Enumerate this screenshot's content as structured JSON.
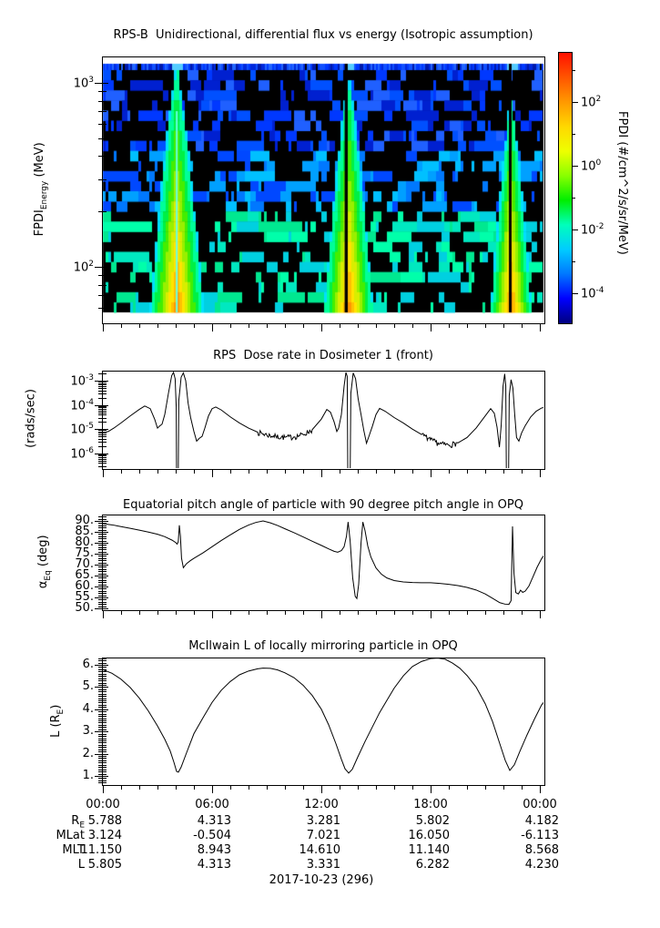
{
  "page_background": "#ffffff",
  "axis_color": "#000000",
  "curve_color": "#000000",
  "xaxis": {
    "major_labels": [
      "00:00",
      "06:00",
      "12:00",
      "18:00",
      "00:00"
    ],
    "major_hours": [
      0,
      6,
      12,
      18,
      24
    ],
    "minor_step_hours": 1,
    "range_hours": [
      0,
      24.25
    ]
  },
  "chart_data": [
    {
      "type": "heatmap",
      "title": "RPS-B  Unidirectional, differential flux vs energy (Isotropic assumption)",
      "ylabel_parts": {
        "pre": "FPDI",
        "sub": "Energy",
        "post": " (MeV)"
      },
      "y_axis": {
        "scale": "log",
        "unit": "MeV",
        "range": [
          57,
          1270
        ],
        "major_ticks": {
          "values": [
            1000,
            100
          ],
          "exponents": [
            "3",
            "2"
          ]
        },
        "minor_ticks": [
          60,
          70,
          80,
          90,
          200,
          300,
          400,
          500,
          600,
          700,
          800,
          900
        ]
      },
      "colorbar": {
        "label": "FPDI (#/cm^2/s/sr/MeV)",
        "scale": "log",
        "tick_exponents": [
          "2",
          "0",
          "-2",
          "-4"
        ],
        "tick_decades": [
          2,
          0,
          -2,
          -4
        ],
        "minor_decades": [
          3,
          1,
          -1,
          -3
        ],
        "gradient_bottom_to_top": [
          "#00007f",
          "#0000ff",
          "#0077ff",
          "#00ccff",
          "#00ffbb",
          "#00ee00",
          "#88ff00",
          "#eeff00",
          "#ffd800",
          "#ff9900",
          "#ff5500",
          "#ff1100"
        ]
      },
      "top_band": {
        "description": "solid blue band at highest energy bin ~1300 MeV",
        "color": "#0030dd"
      },
      "background": "sparse random speckle, blue dashes at high energy, cyan-green dashes at low energy, on black",
      "flames": [
        {
          "center_hour": 4.06,
          "tip_frac": 0.0,
          "half_width_hours": 1.55,
          "gap_hours": null,
          "center_line": true
        },
        {
          "center_hour": 13.5,
          "tip_frac": 0.034,
          "half_width_hours": 1.45,
          "gap_hours": [
            13.28,
            13.45
          ],
          "center_line": false
        },
        {
          "center_hour": 22.42,
          "tip_frac": 0.117,
          "half_width_hours": 1.2,
          "gap_hours": [
            22.3,
            22.45
          ],
          "center_line": false
        }
      ]
    },
    {
      "type": "line",
      "title": "RPS  Dose rate in Dosimeter 1 (front)",
      "ylabel_parts": {
        "pre": "(rads/sec)",
        "sub": "",
        "post": ""
      },
      "y_axis": {
        "scale": "log",
        "range": [
          2.3e-07,
          0.0026
        ],
        "major_ticks": {
          "values": [
            0.001,
            0.0001,
            1e-05,
            1e-06
          ],
          "exponents": [
            "-3",
            "-4",
            "-5",
            "-6"
          ]
        }
      },
      "noisy_ranges": [
        [
          8.3,
          11.6
        ],
        [
          17.2,
          19.9
        ]
      ],
      "series": [
        [
          0,
          7e-06
        ],
        [
          0.3,
          8e-06
        ],
        [
          0.6,
          1.1e-05
        ],
        [
          1,
          1.8e-05
        ],
        [
          1.5,
          3.5e-05
        ],
        [
          2,
          6.5e-05
        ],
        [
          2.3,
          9e-05
        ],
        [
          2.6,
          7e-05
        ],
        [
          2.85,
          2.5e-05
        ],
        [
          3,
          1.1e-05
        ],
        [
          3.1,
          1.3e-05
        ],
        [
          3.25,
          1.6e-05
        ],
        [
          3.4,
          4e-05
        ],
        [
          3.6,
          0.0003
        ],
        [
          3.78,
          0.0016
        ],
        [
          3.88,
          0.0022
        ],
        [
          3.97,
          0.0012
        ],
        [
          4.03,
          8e-05
        ],
        [
          4.06,
          1e-09
        ],
        [
          4.12,
          1e-09
        ],
        [
          4.17,
          0.00015
        ],
        [
          4.3,
          0.0014
        ],
        [
          4.42,
          0.0021
        ],
        [
          4.55,
          0.001
        ],
        [
          4.68,
          0.00012
        ],
        [
          4.82,
          3e-05
        ],
        [
          5,
          8e-06
        ],
        [
          5.15,
          3.2e-06
        ],
        [
          5.3,
          4.2e-06
        ],
        [
          5.45,
          5e-06
        ],
        [
          5.6,
          1.1e-05
        ],
        [
          5.8,
          3.5e-05
        ],
        [
          6,
          7e-05
        ],
        [
          6.2,
          8.2e-05
        ],
        [
          6.5,
          6.2e-05
        ],
        [
          7,
          3.2e-05
        ],
        [
          7.5,
          1.8e-05
        ],
        [
          8,
          1.1e-05
        ],
        [
          8.5,
          7.5e-06
        ],
        [
          9,
          5.8e-06
        ],
        [
          9.5,
          5e-06
        ],
        [
          10,
          4.6e-06
        ],
        [
          10.5,
          4.8e-06
        ],
        [
          11,
          6e-06
        ],
        [
          11.5,
          9.5e-06
        ],
        [
          12,
          2.6e-05
        ],
        [
          12.3,
          6.5e-05
        ],
        [
          12.5,
          5e-05
        ],
        [
          12.7,
          2e-05
        ],
        [
          12.85,
          8e-06
        ],
        [
          12.95,
          1.1e-05
        ],
        [
          13.1,
          4e-05
        ],
        [
          13.25,
          0.0006
        ],
        [
          13.35,
          0.0022
        ],
        [
          13.42,
          0.0015
        ],
        [
          13.47,
          1e-09
        ],
        [
          13.56,
          1e-09
        ],
        [
          13.62,
          0.0003
        ],
        [
          13.75,
          0.0021
        ],
        [
          13.88,
          0.0012
        ],
        [
          14.02,
          0.00018
        ],
        [
          14.18,
          4e-05
        ],
        [
          14.33,
          9e-06
        ],
        [
          14.48,
          2.6e-06
        ],
        [
          14.63,
          5.5e-06
        ],
        [
          14.8,
          1.3e-05
        ],
        [
          15,
          4e-05
        ],
        [
          15.2,
          7.2e-05
        ],
        [
          15.5,
          5.5e-05
        ],
        [
          16,
          3e-05
        ],
        [
          16.5,
          1.8e-05
        ],
        [
          17,
          1e-05
        ],
        [
          17.5,
          6e-06
        ],
        [
          18,
          3.6e-06
        ],
        [
          18.5,
          2.5e-06
        ],
        [
          19,
          2.2e-06
        ],
        [
          19.5,
          2.7e-06
        ],
        [
          20,
          4.5e-06
        ],
        [
          20.5,
          1.1e-05
        ],
        [
          21,
          3.5e-05
        ],
        [
          21.3,
          7e-05
        ],
        [
          21.5,
          4.5e-05
        ],
        [
          21.65,
          1.2e-05
        ],
        [
          21.78,
          1.8e-06
        ],
        [
          21.88,
          1.5e-05
        ],
        [
          21.98,
          0.0006
        ],
        [
          22.07,
          0.0019
        ],
        [
          22.13,
          0.0006
        ],
        [
          22.18,
          1e-09
        ],
        [
          22.26,
          1e-09
        ],
        [
          22.32,
          0.00025
        ],
        [
          22.42,
          0.0011
        ],
        [
          22.52,
          0.0005
        ],
        [
          22.62,
          4e-05
        ],
        [
          22.72,
          4.5e-06
        ],
        [
          22.85,
          3.2e-06
        ],
        [
          23,
          7e-06
        ],
        [
          23.2,
          1.4e-05
        ],
        [
          23.5,
          3.2e-05
        ],
        [
          23.8,
          5.5e-05
        ],
        [
          24.1,
          7.5e-05
        ],
        [
          24.25,
          7.8e-05
        ]
      ]
    },
    {
      "type": "line",
      "title": "Equatorial pitch angle of particle with 90 degree pitch angle in OPQ",
      "ylabel_parts": {
        "pre": "α",
        "sub": "Eq",
        "post": " (deg)"
      },
      "y_axis": {
        "scale": "linear",
        "range": [
          49.2,
          92.9
        ],
        "major_ticks": {
          "values": [
            90,
            85,
            80,
            75,
            70,
            65,
            60,
            55,
            50
          ],
          "labels": [
            "90.",
            "85.",
            "80.",
            "75.",
            "70.",
            "65.",
            "60.",
            "55.",
            "50."
          ]
        },
        "minor_step": 1
      },
      "series": [
        [
          0,
          88.7
        ],
        [
          0.5,
          88.2
        ],
        [
          1,
          87.4
        ],
        [
          1.5,
          86.6
        ],
        [
          2,
          85.8
        ],
        [
          2.5,
          84.9
        ],
        [
          3,
          83.9
        ],
        [
          3.4,
          82.8
        ],
        [
          3.8,
          81.2
        ],
        [
          4,
          80.1
        ],
        [
          4.08,
          79.4
        ],
        [
          4.14,
          80.5
        ],
        [
          4.2,
          88
        ],
        [
          4.26,
          83
        ],
        [
          4.32,
          73
        ],
        [
          4.42,
          68.6
        ],
        [
          4.6,
          70.5
        ],
        [
          4.8,
          71.8
        ],
        [
          5,
          72.9
        ],
        [
          5.5,
          75.4
        ],
        [
          6,
          78.2
        ],
        [
          6.5,
          81
        ],
        [
          7,
          83.6
        ],
        [
          7.5,
          86.1
        ],
        [
          8,
          88.1
        ],
        [
          8.4,
          89.3
        ],
        [
          8.8,
          90
        ],
        [
          9.2,
          89.1
        ],
        [
          9.6,
          87.9
        ],
        [
          10,
          86.4
        ],
        [
          10.5,
          84.6
        ],
        [
          11,
          82.7
        ],
        [
          11.5,
          80.7
        ],
        [
          12,
          78.8
        ],
        [
          12.4,
          77.2
        ],
        [
          12.7,
          76.1
        ],
        [
          12.9,
          75.7
        ],
        [
          13.1,
          76.4
        ],
        [
          13.25,
          78.2
        ],
        [
          13.38,
          83
        ],
        [
          13.47,
          89.5
        ],
        [
          13.58,
          81
        ],
        [
          13.72,
          64
        ],
        [
          13.86,
          55.5
        ],
        [
          13.95,
          54.5
        ],
        [
          14.05,
          61
        ],
        [
          14.18,
          80
        ],
        [
          14.28,
          89.5
        ],
        [
          14.4,
          85.5
        ],
        [
          14.55,
          78.5
        ],
        [
          14.72,
          73.5
        ],
        [
          15,
          68.5
        ],
        [
          15.3,
          65.6
        ],
        [
          15.6,
          63.9
        ],
        [
          16,
          62.7
        ],
        [
          16.5,
          62.1
        ],
        [
          17,
          61.8
        ],
        [
          17.5,
          61.7
        ],
        [
          18,
          61.7
        ],
        [
          18.5,
          61.4
        ],
        [
          19,
          61
        ],
        [
          19.5,
          60.4
        ],
        [
          20,
          59.6
        ],
        [
          20.5,
          58.4
        ],
        [
          21,
          56.6
        ],
        [
          21.4,
          54.6
        ],
        [
          21.8,
          52.6
        ],
        [
          22.1,
          51.9
        ],
        [
          22.3,
          51.8
        ],
        [
          22.42,
          53.5
        ],
        [
          22.5,
          87.5
        ],
        [
          22.58,
          66
        ],
        [
          22.68,
          57.2
        ],
        [
          22.82,
          56.6
        ],
        [
          22.94,
          58.3
        ],
        [
          23.06,
          57.3
        ],
        [
          23.2,
          57.9
        ],
        [
          23.4,
          60.2
        ],
        [
          23.6,
          64
        ],
        [
          23.85,
          68.8
        ],
        [
          24.1,
          72.8
        ],
        [
          24.25,
          74.5
        ]
      ]
    },
    {
      "type": "line",
      "title": "McIlwain L of locally mirroring particle in OPQ",
      "ylabel_parts": {
        "pre": "L (R",
        "sub": "E",
        "post": ")"
      },
      "y_axis": {
        "scale": "linear",
        "range": [
          0.59,
          6.33
        ],
        "major_ticks": {
          "values": [
            6,
            5,
            4,
            3,
            2,
            1
          ],
          "labels": [
            "6.",
            "5.",
            "4.",
            "3.",
            "2.",
            "1."
          ]
        },
        "minor_step": 0.1
      },
      "series": [
        [
          0,
          5.78
        ],
        [
          0.5,
          5.62
        ],
        [
          1,
          5.35
        ],
        [
          1.5,
          4.98
        ],
        [
          2,
          4.5
        ],
        [
          2.5,
          3.92
        ],
        [
          3,
          3.25
        ],
        [
          3.4,
          2.65
        ],
        [
          3.7,
          2.12
        ],
        [
          3.9,
          1.62
        ],
        [
          4.05,
          1.2
        ],
        [
          4.15,
          1.17
        ],
        [
          4.3,
          1.4
        ],
        [
          4.6,
          2.05
        ],
        [
          5,
          2.9
        ],
        [
          5.5,
          3.62
        ],
        [
          6,
          4.31
        ],
        [
          6.5,
          4.85
        ],
        [
          7,
          5.25
        ],
        [
          7.5,
          5.55
        ],
        [
          8,
          5.72
        ],
        [
          8.5,
          5.82
        ],
        [
          8.8,
          5.85
        ],
        [
          9.2,
          5.84
        ],
        [
          9.6,
          5.77
        ],
        [
          10,
          5.64
        ],
        [
          10.5,
          5.42
        ],
        [
          11,
          5.08
        ],
        [
          11.5,
          4.62
        ],
        [
          12,
          4.0
        ],
        [
          12.4,
          3.3
        ],
        [
          12.8,
          2.45
        ],
        [
          13.1,
          1.75
        ],
        [
          13.3,
          1.32
        ],
        [
          13.5,
          1.13
        ],
        [
          13.7,
          1.3
        ],
        [
          14,
          1.85
        ],
        [
          14.4,
          2.55
        ],
        [
          14.8,
          3.2
        ],
        [
          15.2,
          3.85
        ],
        [
          15.6,
          4.4
        ],
        [
          16,
          4.95
        ],
        [
          16.5,
          5.5
        ],
        [
          17,
          5.92
        ],
        [
          17.5,
          6.15
        ],
        [
          18,
          6.28
        ],
        [
          18.4,
          6.3
        ],
        [
          18.8,
          6.25
        ],
        [
          19.2,
          6.08
        ],
        [
          19.6,
          5.85
        ],
        [
          20,
          5.52
        ],
        [
          20.5,
          5.0
        ],
        [
          21,
          4.25
        ],
        [
          21.4,
          3.45
        ],
        [
          21.8,
          2.45
        ],
        [
          22.1,
          1.7
        ],
        [
          22.35,
          1.25
        ],
        [
          22.6,
          1.5
        ],
        [
          22.9,
          2.1
        ],
        [
          23.3,
          2.85
        ],
        [
          23.7,
          3.55
        ],
        [
          24.1,
          4.2
        ],
        [
          24.25,
          4.35
        ]
      ]
    }
  ],
  "footer": {
    "time_labels": [
      "00:00",
      "06:00",
      "12:00",
      "18:00",
      "00:00"
    ],
    "rows": [
      {
        "pre": "R",
        "sub": "E",
        "values": [
          "5.788",
          "4.313",
          "3.281",
          "5.802",
          "4.182"
        ]
      },
      {
        "pre": "MLat",
        "sub": "",
        "values": [
          "3.124",
          "-0.504",
          "7.021",
          "16.050",
          "-6.113"
        ]
      },
      {
        "pre": "MLT",
        "sub": "",
        "values": [
          "11.150",
          "8.943",
          "14.610",
          "11.140",
          "8.568"
        ]
      },
      {
        "pre": "L",
        "sub": "",
        "values": [
          "5.805",
          "4.313",
          "3.331",
          "6.282",
          "4.230"
        ]
      }
    ],
    "date_label": "2017-10-23 (296)"
  }
}
